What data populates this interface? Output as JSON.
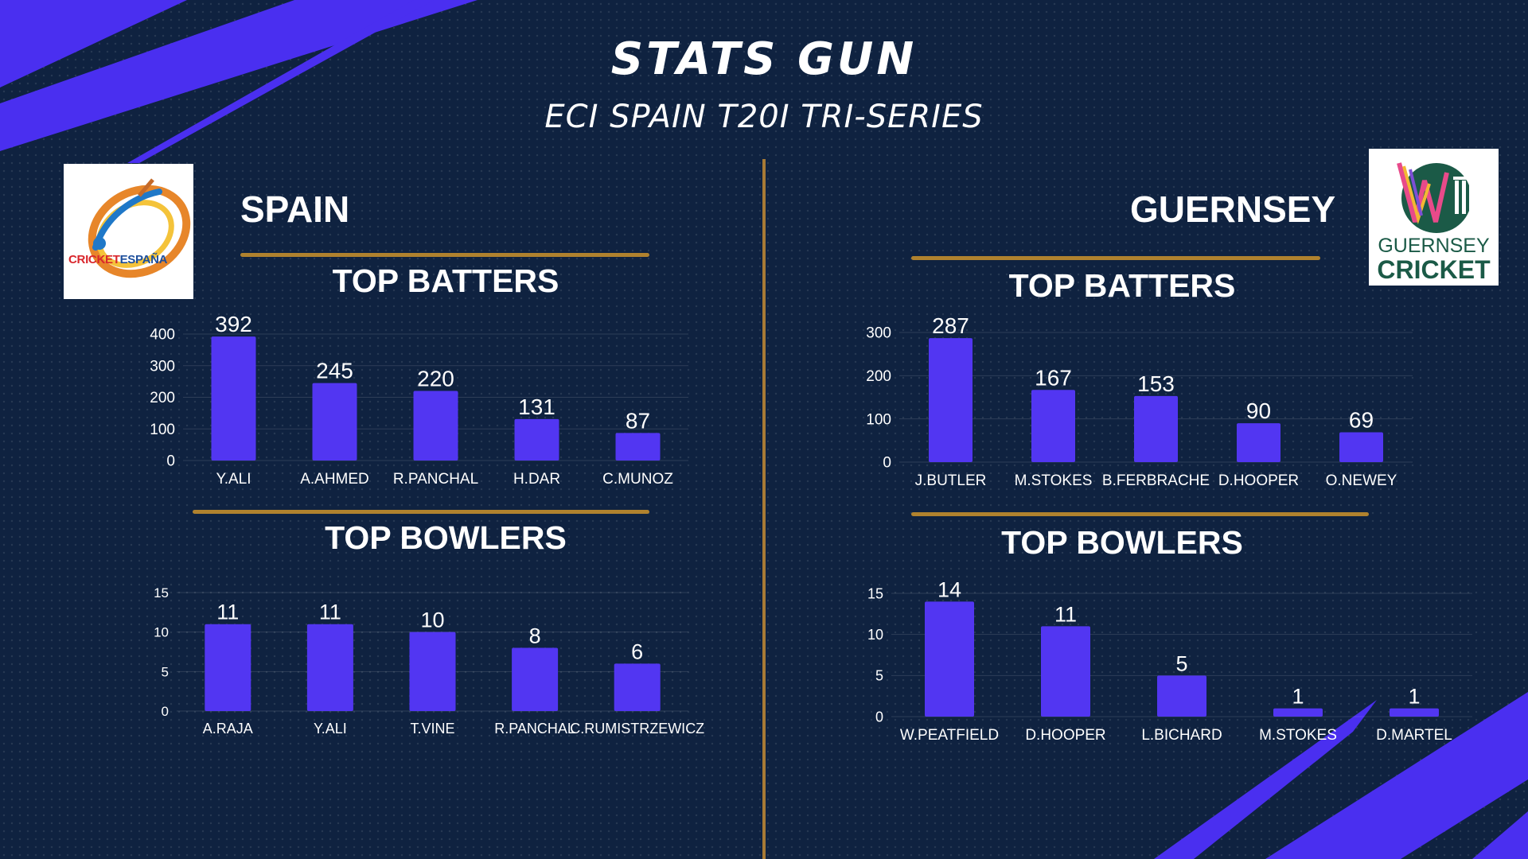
{
  "header": {
    "title": "STATS GUN",
    "subtitle": "ECI SPAIN T20I TRI-SERIES"
  },
  "colors": {
    "background": "#0f2240",
    "bar": "#5236f2",
    "accent_stripe": "#4a2ff0",
    "gold": "#b0822e"
  },
  "spain": {
    "team_name": "SPAIN",
    "logo_text_red": "CRICKET",
    "logo_text_blue": "ESPAÑA",
    "batters_title": "TOP BATTERS",
    "bowlers_title": "TOP BOWLERS"
  },
  "guernsey": {
    "team_name": "GUERNSEY",
    "logo_text_top": "GUERNSEY",
    "logo_text_bottom": "CRICKET",
    "batters_title": "TOP BATTERS",
    "bowlers_title": "TOP BOWLERS"
  },
  "chart_data": [
    {
      "id": "spain-batters",
      "type": "bar",
      "categories": [
        "Y.ALI",
        "A.AHMED",
        "R.PANCHAL",
        "H.DAR",
        "C.MUNOZ"
      ],
      "values": [
        392,
        245,
        220,
        131,
        87
      ],
      "ylim": [
        0,
        400
      ],
      "yticks": [
        0,
        100,
        200,
        300,
        400
      ],
      "grid": true
    },
    {
      "id": "spain-bowlers",
      "type": "bar",
      "categories": [
        "A.RAJA",
        "Y.ALI",
        "T.VINE",
        "R.PANCHAL",
        "C.RUMISTRZEWICZ"
      ],
      "values": [
        11,
        11,
        10,
        8,
        6
      ],
      "ylim": [
        0,
        15
      ],
      "yticks": [
        0,
        5,
        10,
        15
      ],
      "grid": true
    },
    {
      "id": "guernsey-batters",
      "type": "bar",
      "categories": [
        "J.BUTLER",
        "M.STOKES",
        "B.FERBRACHE",
        "D.HOOPER",
        "O.NEWEY"
      ],
      "values": [
        287,
        167,
        153,
        90,
        69
      ],
      "ylim": [
        0,
        300
      ],
      "yticks": [
        0,
        100,
        200,
        300
      ],
      "grid": true
    },
    {
      "id": "guernsey-bowlers",
      "type": "bar",
      "categories": [
        "W.PEATFIELD",
        "D.HOOPER",
        "L.BICHARD",
        "M.STOKES",
        "D.MARTEL"
      ],
      "values": [
        14,
        11,
        5,
        1,
        1
      ],
      "ylim": [
        0,
        15
      ],
      "yticks": [
        0,
        5,
        10,
        15
      ],
      "grid": true
    }
  ]
}
